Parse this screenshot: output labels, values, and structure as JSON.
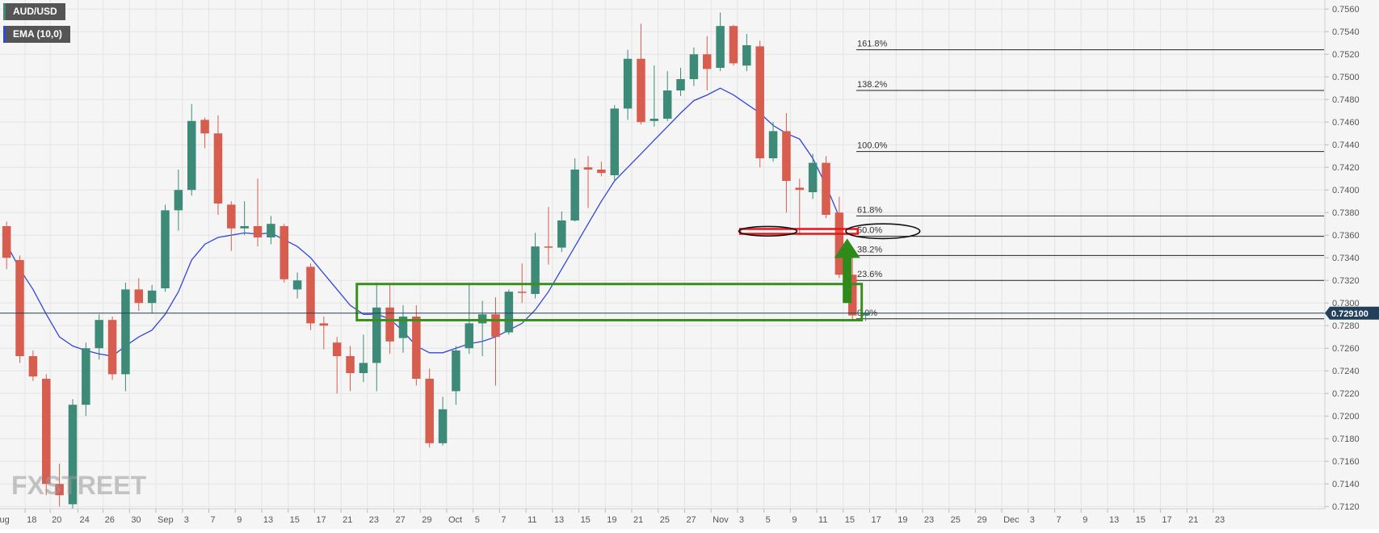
{
  "chart_data": {
    "type": "candlestick",
    "symbol": "AUD/USD",
    "indicator": "EMA (10,0)",
    "watermark": "FXSTREET",
    "current_price": "0.729100",
    "ylim": [
      0.7118,
      0.7568
    ],
    "y_ticks": [
      "0.7560",
      "0.7540",
      "0.7520",
      "0.7500",
      "0.7480",
      "0.7460",
      "0.7440",
      "0.7420",
      "0.7400",
      "0.7380",
      "0.7360",
      "0.7340",
      "0.7320",
      "0.7300",
      "0.7280",
      "0.7260",
      "0.7240",
      "0.7220",
      "0.7200",
      "0.7180",
      "0.7160",
      "0.7140",
      "0.7120"
    ],
    "x_ticks": [
      {
        "label": "Aug",
        "slot": -0.6
      },
      {
        "label": "18",
        "slot": 1.9
      },
      {
        "label": "20",
        "slot": 3.8
      },
      {
        "label": "24",
        "slot": 5.9
      },
      {
        "label": "26",
        "slot": 7.8
      },
      {
        "label": "30",
        "slot": 9.8
      },
      {
        "label": "Sep",
        "slot": 11.8
      },
      {
        "label": "3",
        "slot": 13.8
      },
      {
        "label": "7",
        "slot": 15.8
      },
      {
        "label": "9",
        "slot": 17.8
      },
      {
        "label": "13",
        "slot": 19.8
      },
      {
        "label": "15",
        "slot": 21.8
      },
      {
        "label": "17",
        "slot": 23.8
      },
      {
        "label": "21",
        "slot": 25.8
      },
      {
        "label": "23",
        "slot": 27.8
      },
      {
        "label": "27",
        "slot": 29.8
      },
      {
        "label": "29",
        "slot": 31.8
      },
      {
        "label": "Oct",
        "slot": 33.8
      },
      {
        "label": "5",
        "slot": 35.8
      },
      {
        "label": "7",
        "slot": 37.8
      },
      {
        "label": "11",
        "slot": 39.8
      },
      {
        "label": "13",
        "slot": 41.8
      },
      {
        "label": "15",
        "slot": 43.8
      },
      {
        "label": "19",
        "slot": 45.8
      },
      {
        "label": "21",
        "slot": 47.8
      },
      {
        "label": "25",
        "slot": 49.8
      },
      {
        "label": "27",
        "slot": 51.8
      },
      {
        "label": "Nov",
        "slot": 53.8
      },
      {
        "label": "3",
        "slot": 55.8
      },
      {
        "label": "5",
        "slot": 57.8
      },
      {
        "label": "9",
        "slot": 59.8
      },
      {
        "label": "11",
        "slot": 61.8
      },
      {
        "label": "15",
        "slot": 63.8
      },
      {
        "label": "17",
        "slot": 65.8
      },
      {
        "label": "19",
        "slot": 67.8
      },
      {
        "label": "23",
        "slot": 69.8
      },
      {
        "label": "25",
        "slot": 71.8
      },
      {
        "label": "29",
        "slot": 73.8
      },
      {
        "label": "Dec",
        "slot": 75.8
      },
      {
        "label": "3",
        "slot": 77.8
      },
      {
        "label": "7",
        "slot": 79.8
      },
      {
        "label": "9",
        "slot": 81.8
      },
      {
        "label": "13",
        "slot": 83.8
      },
      {
        "label": "15",
        "slot": 85.8
      },
      {
        "label": "17",
        "slot": 87.8
      },
      {
        "label": "21",
        "slot": 89.8
      },
      {
        "label": "23",
        "slot": 91.8
      }
    ],
    "candles": [
      {
        "o": 0.7368,
        "h": 0.7372,
        "l": 0.733,
        "c": 0.734
      },
      {
        "o": 0.7338,
        "h": 0.7342,
        "l": 0.7247,
        "c": 0.7253
      },
      {
        "o": 0.7253,
        "h": 0.7258,
        "l": 0.7231,
        "c": 0.7235
      },
      {
        "o": 0.7233,
        "h": 0.7237,
        "l": 0.713,
        "c": 0.714
      },
      {
        "o": 0.714,
        "h": 0.7158,
        "l": 0.712,
        "c": 0.713
      },
      {
        "o": 0.7122,
        "h": 0.7215,
        "l": 0.7118,
        "c": 0.721
      },
      {
        "o": 0.721,
        "h": 0.7265,
        "l": 0.72,
        "c": 0.726
      },
      {
        "o": 0.726,
        "h": 0.729,
        "l": 0.725,
        "c": 0.7285
      },
      {
        "o": 0.7285,
        "h": 0.7288,
        "l": 0.7232,
        "c": 0.7237
      },
      {
        "o": 0.7237,
        "h": 0.7318,
        "l": 0.7222,
        "c": 0.7312
      },
      {
        "o": 0.7312,
        "h": 0.7322,
        "l": 0.7293,
        "c": 0.73
      },
      {
        "o": 0.73,
        "h": 0.7316,
        "l": 0.7291,
        "c": 0.7311
      },
      {
        "o": 0.7313,
        "h": 0.7387,
        "l": 0.731,
        "c": 0.7382
      },
      {
        "o": 0.7382,
        "h": 0.7418,
        "l": 0.7364,
        "c": 0.74
      },
      {
        "o": 0.74,
        "h": 0.7476,
        "l": 0.7395,
        "c": 0.7461
      },
      {
        "o": 0.7462,
        "h": 0.7464,
        "l": 0.7437,
        "c": 0.745
      },
      {
        "o": 0.745,
        "h": 0.7466,
        "l": 0.7378,
        "c": 0.7388
      },
      {
        "o": 0.7387,
        "h": 0.739,
        "l": 0.7346,
        "c": 0.7366
      },
      {
        "o": 0.7366,
        "h": 0.739,
        "l": 0.736,
        "c": 0.7368
      },
      {
        "o": 0.7368,
        "h": 0.741,
        "l": 0.735,
        "c": 0.7358
      },
      {
        "o": 0.7358,
        "h": 0.7377,
        "l": 0.7352,
        "c": 0.737
      },
      {
        "o": 0.7368,
        "h": 0.737,
        "l": 0.7318,
        "c": 0.7321
      },
      {
        "o": 0.7312,
        "h": 0.7327,
        "l": 0.7304,
        "c": 0.732
      },
      {
        "o": 0.7332,
        "h": 0.7335,
        "l": 0.7276,
        "c": 0.7282
      },
      {
        "o": 0.7282,
        "h": 0.7288,
        "l": 0.7259,
        "c": 0.728
      },
      {
        "o": 0.7265,
        "h": 0.727,
        "l": 0.722,
        "c": 0.7253
      },
      {
        "o": 0.7253,
        "h": 0.7262,
        "l": 0.7222,
        "c": 0.7238
      },
      {
        "o": 0.7238,
        "h": 0.7272,
        "l": 0.723,
        "c": 0.7247
      },
      {
        "o": 0.7247,
        "h": 0.7318,
        "l": 0.7222,
        "c": 0.7296
      },
      {
        "o": 0.7296,
        "h": 0.7316,
        "l": 0.7255,
        "c": 0.7266
      },
      {
        "o": 0.7269,
        "h": 0.7298,
        "l": 0.7256,
        "c": 0.7288
      },
      {
        "o": 0.7288,
        "h": 0.7298,
        "l": 0.7227,
        "c": 0.7233
      },
      {
        "o": 0.7233,
        "h": 0.7242,
        "l": 0.7172,
        "c": 0.7176
      },
      {
        "o": 0.7176,
        "h": 0.7217,
        "l": 0.7174,
        "c": 0.7206
      },
      {
        "o": 0.7222,
        "h": 0.7262,
        "l": 0.721,
        "c": 0.7258
      },
      {
        "o": 0.726,
        "h": 0.7318,
        "l": 0.7255,
        "c": 0.7282
      },
      {
        "o": 0.7282,
        "h": 0.7302,
        "l": 0.7253,
        "c": 0.729
      },
      {
        "o": 0.729,
        "h": 0.7305,
        "l": 0.7227,
        "c": 0.727
      },
      {
        "o": 0.7274,
        "h": 0.7312,
        "l": 0.7272,
        "c": 0.731
      },
      {
        "o": 0.731,
        "h": 0.7335,
        "l": 0.73,
        "c": 0.7309
      },
      {
        "o": 0.7308,
        "h": 0.7362,
        "l": 0.7304,
        "c": 0.735
      },
      {
        "o": 0.735,
        "h": 0.7385,
        "l": 0.7334,
        "c": 0.7349
      },
      {
        "o": 0.7349,
        "h": 0.7381,
        "l": 0.7345,
        "c": 0.7373
      },
      {
        "o": 0.7373,
        "h": 0.7428,
        "l": 0.7372,
        "c": 0.7418
      },
      {
        "o": 0.742,
        "h": 0.743,
        "l": 0.7384,
        "c": 0.7418
      },
      {
        "o": 0.7418,
        "h": 0.7425,
        "l": 0.7412,
        "c": 0.7415
      },
      {
        "o": 0.7413,
        "h": 0.7475,
        "l": 0.7407,
        "c": 0.7472
      },
      {
        "o": 0.7472,
        "h": 0.7524,
        "l": 0.7462,
        "c": 0.7516
      },
      {
        "o": 0.7516,
        "h": 0.7547,
        "l": 0.7458,
        "c": 0.746
      },
      {
        "o": 0.7461,
        "h": 0.751,
        "l": 0.7456,
        "c": 0.7463
      },
      {
        "o": 0.7463,
        "h": 0.7505,
        "l": 0.7461,
        "c": 0.7488
      },
      {
        "o": 0.7488,
        "h": 0.7508,
        "l": 0.7483,
        "c": 0.7498
      },
      {
        "o": 0.7498,
        "h": 0.7526,
        "l": 0.7492,
        "c": 0.752
      },
      {
        "o": 0.752,
        "h": 0.7536,
        "l": 0.7488,
        "c": 0.7507
      },
      {
        "o": 0.7508,
        "h": 0.7557,
        "l": 0.7505,
        "c": 0.7545
      },
      {
        "o": 0.7545,
        "h": 0.7546,
        "l": 0.751,
        "c": 0.7512
      },
      {
        "o": 0.751,
        "h": 0.7538,
        "l": 0.7505,
        "c": 0.7528
      },
      {
        "o": 0.7527,
        "h": 0.7532,
        "l": 0.742,
        "c": 0.7428
      },
      {
        "o": 0.7428,
        "h": 0.746,
        "l": 0.7425,
        "c": 0.7452
      },
      {
        "o": 0.7452,
        "h": 0.7468,
        "l": 0.738,
        "c": 0.7408
      },
      {
        "o": 0.7402,
        "h": 0.741,
        "l": 0.736,
        "c": 0.74
      },
      {
        "o": 0.7398,
        "h": 0.7432,
        "l": 0.7392,
        "c": 0.7424
      },
      {
        "o": 0.7424,
        "h": 0.743,
        "l": 0.7375,
        "c": 0.7378
      },
      {
        "o": 0.738,
        "h": 0.7394,
        "l": 0.7322,
        "c": 0.7325
      },
      {
        "o": 0.7325,
        "h": 0.7341,
        "l": 0.7284,
        "c": 0.7289
      },
      {
        "o": 0.7289,
        "h": 0.7293,
        "l": 0.7284,
        "c": 0.7291
      }
    ],
    "ema": [
      0.7352,
      0.733,
      0.7312,
      0.729,
      0.727,
      0.7262,
      0.7258,
      0.7255,
      0.7253,
      0.7262,
      0.727,
      0.7276,
      0.729,
      0.731,
      0.7338,
      0.7352,
      0.7358,
      0.736,
      0.7362,
      0.7361,
      0.7362,
      0.7356,
      0.735,
      0.734,
      0.7326,
      0.7312,
      0.7298,
      0.729,
      0.729,
      0.7286,
      0.7275,
      0.7262,
      0.7256,
      0.7256,
      0.726,
      0.7264,
      0.7266,
      0.727,
      0.7276,
      0.7282,
      0.7294,
      0.731,
      0.733,
      0.735,
      0.737,
      0.739,
      0.7408,
      0.742,
      0.7432,
      0.7444,
      0.7456,
      0.7468,
      0.7479,
      0.7484,
      0.749,
      0.7484,
      0.7476,
      0.7468,
      0.7457,
      0.745,
      0.7445,
      0.7428,
      0.7404,
      0.7376
    ],
    "fibonacci": [
      {
        "label": "161.8%",
        "price": 0.7524
      },
      {
        "label": "138.2%",
        "price": 0.7488
      },
      {
        "label": "100.0%",
        "price": 0.7434
      },
      {
        "label": "61.8%",
        "price": 0.7377
      },
      {
        "label": "50.0%",
        "price": 0.7359
      },
      {
        "label": "38.2%",
        "price": 0.7342
      },
      {
        "label": "23.6%",
        "price": 0.732
      },
      {
        "label": "0.0%",
        "price": 0.7286
      }
    ],
    "zones": [
      {
        "kind": "support-box",
        "color": "#3a8f1e",
        "top": 0.73168,
        "bottom": 0.72848,
        "slot_from": 27,
        "slot_to": 65.2
      },
      {
        "kind": "resistance-box",
        "color": "#e8161b",
        "top": 0.73655,
        "bottom": 0.73612,
        "slot_from": 56,
        "slot_to": 64.9
      }
    ],
    "ellipses": [
      {
        "cx_slot": 58.1,
        "price": 0.73635,
        "rx_slots": 2.2,
        "ry_price": 0.00042
      },
      {
        "cx_slot": 66.8,
        "price": 0.73635,
        "rx_slots": 2.8,
        "ry_price": 0.00065
      }
    ],
    "arrow": {
      "color": "#2e8a1a",
      "slot": 64.1,
      "from_price": 0.73,
      "to_price": 0.7357
    },
    "colors": {
      "up": "#3d8a78",
      "down": "#d75d4e",
      "ema": "#3148d8",
      "price_tag": "#22405a",
      "grid": "#e4e4e4",
      "axis_text": "#555555",
      "fib_line": "#222222"
    }
  }
}
